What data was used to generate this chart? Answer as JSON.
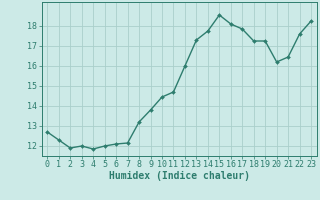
{
  "x": [
    0,
    1,
    2,
    3,
    4,
    5,
    6,
    7,
    8,
    9,
    10,
    11,
    12,
    13,
    14,
    15,
    16,
    17,
    18,
    19,
    20,
    21,
    22,
    23
  ],
  "y": [
    12.7,
    12.3,
    11.9,
    12.0,
    11.85,
    12.0,
    12.1,
    12.15,
    13.2,
    13.8,
    14.45,
    14.7,
    16.0,
    17.3,
    17.75,
    18.55,
    18.1,
    17.85,
    17.25,
    17.25,
    16.2,
    16.45,
    17.6,
    18.25
  ],
  "line_color": "#2e7d6e",
  "marker": "D",
  "markersize": 2.0,
  "linewidth": 1.0,
  "background_color": "#cceae7",
  "grid_color": "#aacfcb",
  "xlabel": "Humidex (Indice chaleur)",
  "xlabel_fontsize": 7,
  "tick_fontsize": 6,
  "yticks": [
    12,
    13,
    14,
    15,
    16,
    17,
    18
  ],
  "ylim": [
    11.5,
    19.2
  ],
  "xlim": [
    -0.5,
    23.5
  ],
  "xticks": [
    0,
    1,
    2,
    3,
    4,
    5,
    6,
    7,
    8,
    9,
    10,
    11,
    12,
    13,
    14,
    15,
    16,
    17,
    18,
    19,
    20,
    21,
    22,
    23
  ]
}
